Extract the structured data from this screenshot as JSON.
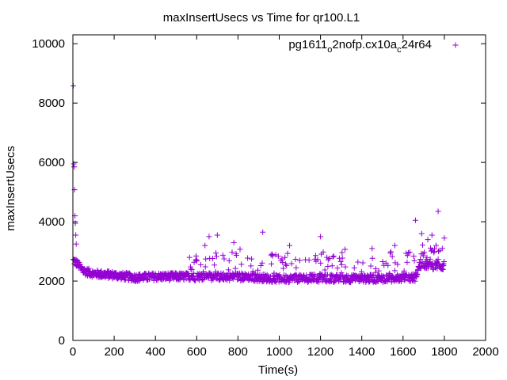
{
  "chart_data": {
    "type": "scatter",
    "title": "maxInsertUsecs vs Time for qr100.L1",
    "xlabel": "Time(s)",
    "ylabel": "maxInsertUsecs",
    "xlim": [
      0,
      2000
    ],
    "ylim": [
      0,
      10300
    ],
    "x_ticks": [
      0,
      200,
      400,
      600,
      800,
      1000,
      1200,
      1400,
      1600,
      1800,
      2000
    ],
    "y_ticks": [
      0,
      2000,
      4000,
      6000,
      8000,
      10000
    ],
    "grid": false,
    "legend": "top-right",
    "marker": "+",
    "series": [
      {
        "name": "pg1611_o2nofp.cx10a_c24r64",
        "legend_parts": {
          "a": "pg1611",
          "sub1": "o",
          "b": "2nofp.cx10a",
          "sub2": "c",
          "c": "24r64"
        },
        "color": "#9400d3",
        "baseline": [
          [
            0,
            2700
          ],
          [
            20,
            2600
          ],
          [
            50,
            2350
          ],
          [
            100,
            2250
          ],
          [
            200,
            2200
          ],
          [
            300,
            2120
          ],
          [
            400,
            2150
          ],
          [
            600,
            2150
          ],
          [
            800,
            2150
          ],
          [
            1000,
            2080
          ],
          [
            1200,
            2100
          ],
          [
            1400,
            2080
          ],
          [
            1600,
            2100
          ],
          [
            1660,
            2120
          ],
          [
            1680,
            2550
          ],
          [
            1800,
            2500
          ]
        ],
        "outliers": [
          [
            2,
            8580
          ],
          [
            4,
            5950
          ],
          [
            6,
            5850
          ],
          [
            8,
            5080
          ],
          [
            10,
            4200
          ],
          [
            12,
            3950
          ],
          [
            14,
            3550
          ],
          [
            16,
            3250
          ],
          [
            640,
            3200
          ],
          [
            660,
            3500
          ],
          [
            700,
            3550
          ],
          [
            780,
            3300
          ],
          [
            920,
            3650
          ],
          [
            1050,
            3200
          ],
          [
            1200,
            3500
          ],
          [
            1450,
            3100
          ],
          [
            1560,
            3200
          ],
          [
            1660,
            4050
          ],
          [
            1690,
            3600
          ],
          [
            1720,
            3400
          ],
          [
            1740,
            3550
          ],
          [
            1770,
            4350
          ],
          [
            1800,
            3450
          ],
          [
            1760,
            3200
          ],
          [
            1790,
            3100
          ]
        ]
      }
    ]
  }
}
